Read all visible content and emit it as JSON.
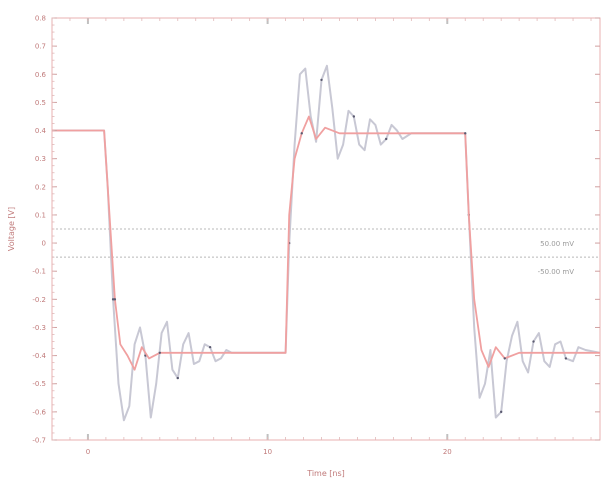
{
  "chart_data": {
    "type": "line",
    "title": "",
    "xlabel": "Time [ns]",
    "ylabel": "Voltage [V]",
    "xlim": [
      -2,
      28.5
    ],
    "ylim": [
      -0.7,
      0.8
    ],
    "xticks": [
      0,
      10,
      20
    ],
    "xtick_labels": [
      "0",
      "10",
      "20"
    ],
    "yticks": [
      0.8,
      0.7,
      0.6,
      0.5,
      0.4,
      0.3,
      0.2,
      0.1,
      0,
      -0.1,
      -0.2,
      -0.3,
      -0.4,
      -0.5,
      -0.6,
      -0.7
    ],
    "ytick_labels": [
      "0.8",
      "0.7",
      "0.6",
      "0.5",
      "0.4",
      "0.3",
      "0.2",
      "0.1",
      "0",
      "-0.1",
      "-0.2",
      "-0.3",
      "-0.4",
      "-0.5",
      "-0.6",
      "-0.7"
    ],
    "grid": false,
    "reference_lines": [
      {
        "y": 0.05,
        "style": "dotted",
        "label": "50.00 mV"
      },
      {
        "y": -0.05,
        "style": "dotted",
        "label": "-50.00 mV"
      }
    ],
    "series": [
      {
        "color": "#f0a0a0",
        "description_free": true,
        "points": [
          [
            -2,
            0.4
          ],
          [
            0.9,
            0.4
          ],
          [
            1.2,
            0.1
          ],
          [
            1.5,
            -0.2
          ],
          [
            1.8,
            -0.36
          ],
          [
            2.2,
            -0.4
          ],
          [
            2.6,
            -0.45
          ],
          [
            3,
            -0.37
          ],
          [
            3.4,
            -0.41
          ],
          [
            4,
            -0.39
          ],
          [
            6,
            -0.39
          ],
          [
            10,
            -0.39
          ],
          [
            11,
            -0.39
          ],
          [
            11.2,
            0.1
          ],
          [
            11.5,
            0.3
          ],
          [
            11.9,
            0.39
          ],
          [
            12.3,
            0.45
          ],
          [
            12.7,
            0.37
          ],
          [
            13.2,
            0.41
          ],
          [
            14,
            0.39
          ],
          [
            18,
            0.39
          ],
          [
            21,
            0.39
          ],
          [
            21.2,
            0.1
          ],
          [
            21.5,
            -0.2
          ],
          [
            21.9,
            -0.38
          ],
          [
            22.3,
            -0.44
          ],
          [
            22.7,
            -0.37
          ],
          [
            23.2,
            -0.41
          ],
          [
            24,
            -0.39
          ],
          [
            28.5,
            -0.39
          ]
        ]
      },
      {
        "color": "#c8c8d4",
        "points": [
          [
            -2,
            0.4
          ],
          [
            0.9,
            0.4
          ],
          [
            1.1,
            0.2
          ],
          [
            1.4,
            -0.2
          ],
          [
            1.7,
            -0.5
          ],
          [
            2,
            -0.63
          ],
          [
            2.3,
            -0.58
          ],
          [
            2.6,
            -0.36
          ],
          [
            2.9,
            -0.3
          ],
          [
            3.2,
            -0.4
          ],
          [
            3.5,
            -0.62
          ],
          [
            3.8,
            -0.5
          ],
          [
            4.1,
            -0.32
          ],
          [
            4.4,
            -0.28
          ],
          [
            4.7,
            -0.45
          ],
          [
            5,
            -0.48
          ],
          [
            5.3,
            -0.36
          ],
          [
            5.6,
            -0.32
          ],
          [
            5.9,
            -0.43
          ],
          [
            6.2,
            -0.42
          ],
          [
            6.5,
            -0.36
          ],
          [
            6.8,
            -0.37
          ],
          [
            7.1,
            -0.42
          ],
          [
            7.4,
            -0.41
          ],
          [
            7.7,
            -0.38
          ],
          [
            8,
            -0.39
          ],
          [
            11,
            -0.39
          ],
          [
            11.2,
            0
          ],
          [
            11.5,
            0.35
          ],
          [
            11.8,
            0.6
          ],
          [
            12.1,
            0.62
          ],
          [
            12.4,
            0.45
          ],
          [
            12.7,
            0.36
          ],
          [
            13,
            0.58
          ],
          [
            13.3,
            0.63
          ],
          [
            13.6,
            0.48
          ],
          [
            13.9,
            0.3
          ],
          [
            14.2,
            0.35
          ],
          [
            14.5,
            0.47
          ],
          [
            14.8,
            0.45
          ],
          [
            15.1,
            0.35
          ],
          [
            15.4,
            0.33
          ],
          [
            15.7,
            0.44
          ],
          [
            16,
            0.42
          ],
          [
            16.3,
            0.35
          ],
          [
            16.6,
            0.37
          ],
          [
            16.9,
            0.42
          ],
          [
            17.2,
            0.4
          ],
          [
            17.5,
            0.37
          ],
          [
            18,
            0.39
          ],
          [
            21,
            0.39
          ],
          [
            21.2,
            0.1
          ],
          [
            21.5,
            -0.3
          ],
          [
            21.8,
            -0.55
          ],
          [
            22.1,
            -0.5
          ],
          [
            22.4,
            -0.38
          ],
          [
            22.7,
            -0.62
          ],
          [
            23,
            -0.6
          ],
          [
            23.3,
            -0.42
          ],
          [
            23.6,
            -0.33
          ],
          [
            23.9,
            -0.28
          ],
          [
            24.2,
            -0.42
          ],
          [
            24.5,
            -0.46
          ],
          [
            24.8,
            -0.35
          ],
          [
            25.1,
            -0.32
          ],
          [
            25.4,
            -0.42
          ],
          [
            25.7,
            -0.44
          ],
          [
            26,
            -0.36
          ],
          [
            26.3,
            -0.35
          ],
          [
            26.6,
            -0.41
          ],
          [
            27,
            -0.42
          ],
          [
            27.3,
            -0.37
          ],
          [
            27.7,
            -0.38
          ],
          [
            28.5,
            -0.39
          ]
        ]
      }
    ]
  }
}
